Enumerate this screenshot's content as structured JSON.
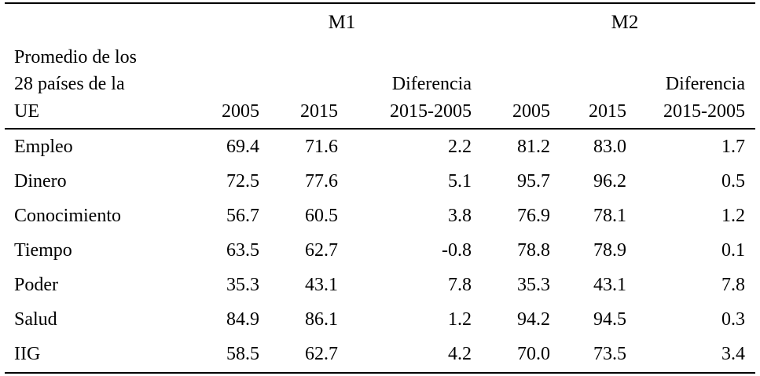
{
  "table": {
    "groups": {
      "m1": "M1",
      "m2": "M2"
    },
    "stub_header": [
      "Promedio de los",
      "28 países de la",
      "UE"
    ],
    "column_headers": {
      "m1_2005": "2005",
      "m1_2015": "2015",
      "m1_diff_l1": "Diferencia",
      "m1_diff_l2": "2015-2005",
      "m2_2005": "2005",
      "m2_2015": "2015",
      "m2_diff_l1": "Diferencia",
      "m2_diff_l2": "2015-2005"
    },
    "rows": [
      {
        "label": "Empleo",
        "values": [
          "69.4",
          "71.6",
          "2.2",
          "81.2",
          "83.0",
          "1.7"
        ]
      },
      {
        "label": "Dinero",
        "values": [
          "72.5",
          "77.6",
          "5.1",
          "95.7",
          "96.2",
          "0.5"
        ]
      },
      {
        "label": "Conocimiento",
        "values": [
          "56.7",
          "60.5",
          "3.8",
          "76.9",
          "78.1",
          "1.2"
        ]
      },
      {
        "label": "Tiempo",
        "values": [
          "63.5",
          "62.7",
          "-0.8",
          "78.8",
          "78.9",
          "0.1"
        ]
      },
      {
        "label": "Poder",
        "values": [
          "35.3",
          "43.1",
          "7.8",
          "35.3",
          "43.1",
          "7.8"
        ]
      },
      {
        "label": "Salud",
        "values": [
          "84.9",
          "86.1",
          "1.2",
          "94.2",
          "94.5",
          "0.3"
        ]
      },
      {
        "label": "IIG",
        "values": [
          "58.5",
          "62.7",
          "4.2",
          "70.0",
          "73.5",
          "3.4"
        ]
      }
    ]
  }
}
